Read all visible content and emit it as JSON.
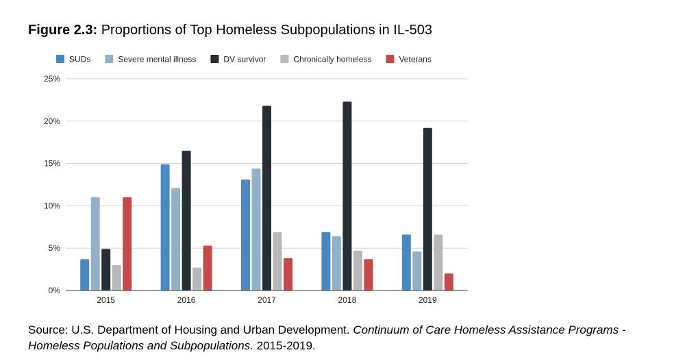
{
  "figure": {
    "label": "Figure 2.3:",
    "title": "Proportions of Top Homeless Subpopulations in IL-503"
  },
  "source": {
    "prefix": "Source: U.S. Department of Housing and Urban Development.",
    "title": "Continuum of Care Homeless Assistance Programs - Homeless Populations and Subpopulations.",
    "suffix": "2015-2019."
  },
  "chart_data": {
    "type": "bar",
    "title": "Proportions of Top Homeless Subpopulations in IL-503",
    "xlabel": "",
    "ylabel": "",
    "categories": [
      "2015",
      "2016",
      "2017",
      "2018",
      "2019"
    ],
    "ylim": [
      0,
      25
    ],
    "yticks": [
      0,
      5,
      10,
      15,
      20,
      25
    ],
    "ytick_labels": [
      "0%",
      "5%",
      "10%",
      "15%",
      "20%",
      "25%"
    ],
    "grid": true,
    "legend_position": "top",
    "series": [
      {
        "name": "SUDs",
        "color": "#4a89bf",
        "values": [
          3.7,
          14.9,
          13.1,
          6.9,
          6.6
        ]
      },
      {
        "name": "Severe mental illness",
        "color": "#93b0c9",
        "values": [
          11.0,
          12.1,
          14.4,
          6.4,
          4.6
        ]
      },
      {
        "name": "DV survivor",
        "color": "#262e36",
        "values": [
          4.9,
          16.5,
          21.8,
          22.3,
          19.2
        ]
      },
      {
        "name": "Chronically homeless",
        "color": "#b8b8b8",
        "values": [
          3.0,
          2.7,
          6.9,
          4.7,
          6.6
        ]
      },
      {
        "name": "Veterans",
        "color": "#c44a4a",
        "values": [
          11.0,
          5.3,
          3.8,
          3.7,
          2.0
        ]
      }
    ]
  }
}
